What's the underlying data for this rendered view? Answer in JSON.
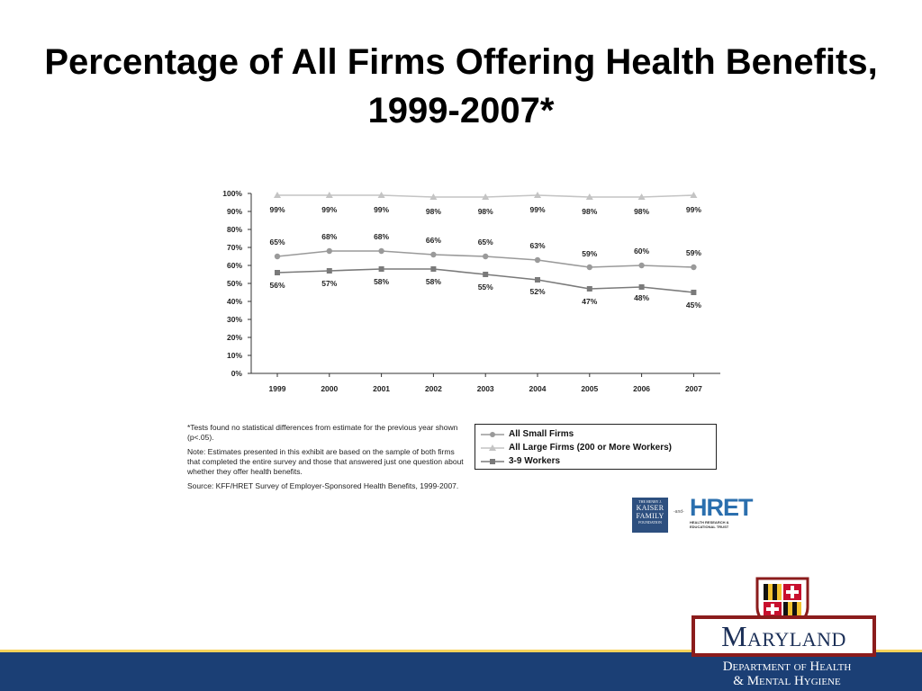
{
  "slide": {
    "title": "Percentage of All Firms Offering Health Benefits, 1999-2007*"
  },
  "chart_data": {
    "type": "line",
    "title": "",
    "xlabel": "",
    "ylabel": "",
    "ylim": [
      0,
      100
    ],
    "y_ticks": [
      "0%",
      "10%",
      "20%",
      "30%",
      "40%",
      "50%",
      "60%",
      "70%",
      "80%",
      "90%",
      "100%"
    ],
    "categories": [
      "1999",
      "2000",
      "2001",
      "2002",
      "2003",
      "2004",
      "2005",
      "2006",
      "2007"
    ],
    "series": [
      {
        "name": "All Small Firms",
        "marker": "circle",
        "color": "#9a9a9a",
        "values": [
          65,
          68,
          68,
          66,
          65,
          63,
          59,
          60,
          59
        ],
        "labels": [
          "65%",
          "68%",
          "68%",
          "66%",
          "65%",
          "63%",
          "59%",
          "60%",
          "59%"
        ]
      },
      {
        "name": "All Large Firms (200 or More Workers)",
        "marker": "triangle",
        "color": "#c4c4c4",
        "values": [
          99,
          99,
          99,
          98,
          98,
          99,
          98,
          98,
          99
        ],
        "labels": [
          "99%",
          "99%",
          "99%",
          "98%",
          "98%",
          "99%",
          "98%",
          "98%",
          "99%"
        ]
      },
      {
        "name": "3-9 Workers",
        "marker": "square",
        "color": "#7a7a7a",
        "values": [
          56,
          57,
          58,
          58,
          55,
          52,
          47,
          48,
          45
        ],
        "labels": [
          "56%",
          "57%",
          "58%",
          "58%",
          "55%",
          "52%",
          "47%",
          "48%",
          "45%"
        ]
      }
    ],
    "legend": "bottom-right",
    "grid": false
  },
  "notes": {
    "significance": "*Tests found no statistical differences from estimate for the previous year shown (p<.05).",
    "sample": "Note: Estimates presented in this exhibit are based on the sample of both firms that completed the entire survey and those that answered just one question about whether they offer health benefits.",
    "source": "Source: KFF/HRET Survey of Employer-Sponsored Health Benefits, 1999-2007."
  },
  "logos": {
    "kff_small": "THE HENRY J.",
    "kff_line1": "KAISER",
    "kff_line2": "FAMILY",
    "kff_line3": "FOUNDATION",
    "and": "-and-",
    "hret": "HRET",
    "hret_sub1": "HEALTH RESEARCH &",
    "hret_sub2": "EDUCATIONAL TRUST"
  },
  "branding": {
    "state": "Maryland",
    "dept_line1": "Department of Health",
    "dept_line2": "& Mental Hygiene"
  },
  "colors": {
    "footer_bar": "#1b3f75",
    "footer_accent": "#f6d25a",
    "maryland_border": "#8b1c1c",
    "maryland_text": "#1b2f57"
  }
}
